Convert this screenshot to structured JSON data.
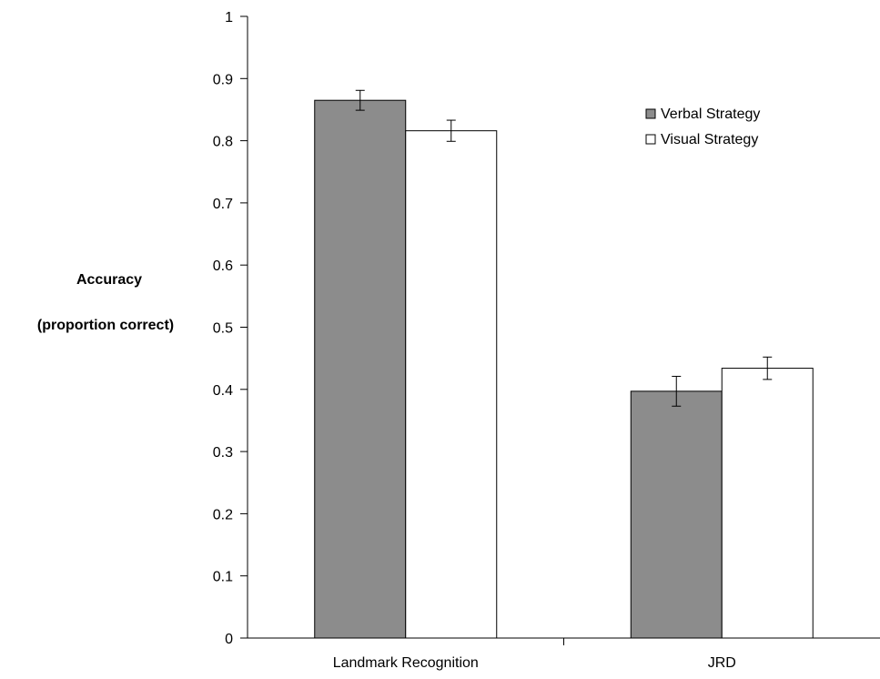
{
  "chart_data": {
    "type": "bar",
    "title": "",
    "xlabel": "",
    "ylabel": "Accuracy (proportion correct)",
    "ylabel_lines": [
      "Accuracy",
      "(proportion correct)"
    ],
    "ylim": [
      0,
      1
    ],
    "yticks": [
      0,
      0.1,
      0.2,
      0.3,
      0.4,
      0.5,
      0.6,
      0.7,
      0.8,
      0.9,
      1
    ],
    "ytick_labels": [
      "0",
      "0.1",
      "0.2",
      "0.3",
      "0.4",
      "0.5",
      "0.6",
      "0.7",
      "0.8",
      "0.9",
      "1"
    ],
    "grid": false,
    "legend_position": "top-right",
    "categories": [
      "Landmark Recognition",
      "JRD"
    ],
    "series": [
      {
        "name": "Verbal Strategy",
        "color": "#8c8c8c",
        "values": [
          0.865,
          0.397
        ],
        "errors": [
          0.016,
          0.024
        ]
      },
      {
        "name": "Visual Strategy",
        "color": "#ffffff",
        "values": [
          0.816,
          0.434
        ],
        "errors": [
          0.017,
          0.018
        ]
      }
    ]
  }
}
